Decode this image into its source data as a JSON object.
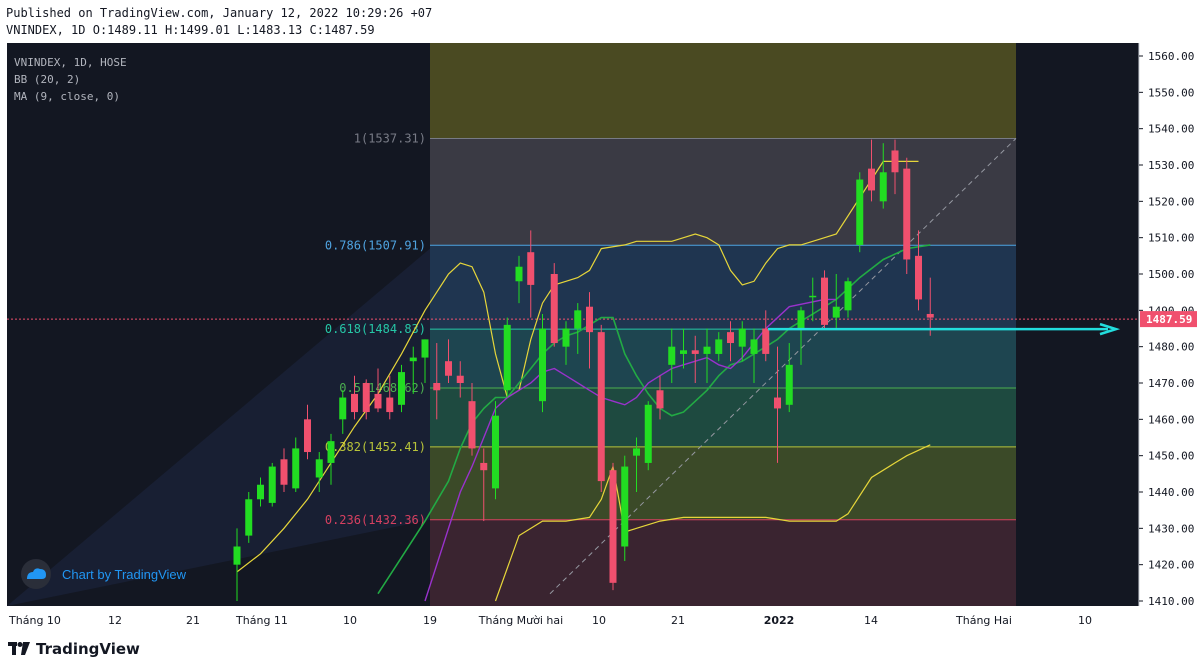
{
  "header": {
    "published": "Published on TradingView.com, January 12, 2022 10:29:26 +07",
    "symbol_line": "VNINDEX, 1D",
    "o": "O:1489.11",
    "h": "H:1499.01",
    "l": "L:1483.13",
    "c": "C:1487.59"
  },
  "legend": {
    "title": "VNINDEX, 1D, HOSE",
    "bb": "BB (20, 2)",
    "ma": "MA (9, close, 0)"
  },
  "watermark": "Chart by TradingView",
  "footer_brand": "TradingView",
  "price_tag": "1487.59",
  "colors": {
    "background": "#131722",
    "up": "#22dd22",
    "down": "#f0506e",
    "bb_band": "#e6d63a",
    "bb_basis": "#22aa44",
    "ma": "#9932cc",
    "arrow": "#22dddd",
    "price_tag": "#f0506e"
  },
  "chart_data": {
    "type": "candlestick",
    "y_axis": {
      "ylim": [
        1410,
        1560
      ],
      "ticks": [
        1410,
        1420,
        1430,
        1440,
        1450,
        1460,
        1470,
        1480,
        1490,
        1500,
        1510,
        1520,
        1530,
        1540,
        1550,
        1560
      ]
    },
    "x_axis": {
      "labels": [
        "Tháng 10",
        "12",
        "21",
        "Tháng 11",
        "10",
        "19",
        "Tháng Mười hai",
        "10",
        "21",
        "2022",
        "14",
        "Tháng Hai",
        "10"
      ],
      "bold": [
        "2022"
      ]
    },
    "candles": [
      {
        "o": 1420,
        "h": 1430,
        "l": 1410,
        "c": 1425
      },
      {
        "o": 1428,
        "h": 1440,
        "l": 1426,
        "c": 1438
      },
      {
        "o": 1438,
        "h": 1444,
        "l": 1436,
        "c": 1442
      },
      {
        "o": 1437,
        "h": 1448,
        "l": 1436,
        "c": 1447
      },
      {
        "o": 1449,
        "h": 1452,
        "l": 1440,
        "c": 1442
      },
      {
        "o": 1441,
        "h": 1455,
        "l": 1440,
        "c": 1452
      },
      {
        "o": 1460,
        "h": 1464,
        "l": 1449,
        "c": 1451
      },
      {
        "o": 1444,
        "h": 1451,
        "l": 1440,
        "c": 1449
      },
      {
        "o": 1448,
        "h": 1456,
        "l": 1442,
        "c": 1454
      },
      {
        "o": 1460,
        "h": 1468,
        "l": 1456,
        "c": 1466
      },
      {
        "o": 1467,
        "h": 1472,
        "l": 1460,
        "c": 1462
      },
      {
        "o": 1470,
        "h": 1471,
        "l": 1460,
        "c": 1462
      },
      {
        "o": 1467,
        "h": 1474,
        "l": 1462,
        "c": 1463
      },
      {
        "o": 1466,
        "h": 1472,
        "l": 1460,
        "c": 1462
      },
      {
        "o": 1464,
        "h": 1475,
        "l": 1462,
        "c": 1473
      },
      {
        "o": 1476,
        "h": 1480,
        "l": 1467,
        "c": 1477
      },
      {
        "o": 1477,
        "h": 1482,
        "l": 1470,
        "c": 1482
      },
      {
        "o": 1470,
        "h": 1481,
        "l": 1460,
        "c": 1468
      },
      {
        "o": 1476,
        "h": 1482,
        "l": 1470,
        "c": 1472
      },
      {
        "o": 1472,
        "h": 1476,
        "l": 1466,
        "c": 1470
      },
      {
        "o": 1465,
        "h": 1470,
        "l": 1450,
        "c": 1452
      },
      {
        "o": 1448,
        "h": 1452,
        "l": 1432,
        "c": 1446
      },
      {
        "o": 1441,
        "h": 1465,
        "l": 1438,
        "c": 1461
      },
      {
        "o": 1468,
        "h": 1488,
        "l": 1466,
        "c": 1486
      },
      {
        "o": 1498,
        "h": 1505,
        "l": 1492,
        "c": 1502
      },
      {
        "o": 1506,
        "h": 1512,
        "l": 1488,
        "c": 1497
      },
      {
        "o": 1465,
        "h": 1489,
        "l": 1462,
        "c": 1485
      },
      {
        "o": 1500,
        "h": 1503,
        "l": 1480,
        "c": 1481
      },
      {
        "o": 1480,
        "h": 1487,
        "l": 1475,
        "c": 1485
      },
      {
        "o": 1485,
        "h": 1492,
        "l": 1478,
        "c": 1490
      },
      {
        "o": 1491,
        "h": 1495,
        "l": 1474,
        "c": 1484
      },
      {
        "o": 1484,
        "h": 1486,
        "l": 1440,
        "c": 1443
      },
      {
        "o": 1446,
        "h": 1448,
        "l": 1413,
        "c": 1415
      },
      {
        "o": 1425,
        "h": 1450,
        "l": 1421,
        "c": 1447
      },
      {
        "o": 1450,
        "h": 1455,
        "l": 1440,
        "c": 1452
      },
      {
        "o": 1448,
        "h": 1465,
        "l": 1446,
        "c": 1464
      },
      {
        "o": 1468,
        "h": 1472,
        "l": 1460,
        "c": 1463
      },
      {
        "o": 1475,
        "h": 1485,
        "l": 1470,
        "c": 1480
      },
      {
        "o": 1478,
        "h": 1485,
        "l": 1474,
        "c": 1479
      },
      {
        "o": 1479,
        "h": 1483,
        "l": 1470,
        "c": 1478
      },
      {
        "o": 1478,
        "h": 1485,
        "l": 1470,
        "c": 1480
      },
      {
        "o": 1478,
        "h": 1484,
        "l": 1476,
        "c": 1482
      },
      {
        "o": 1484,
        "h": 1487,
        "l": 1476,
        "c": 1481
      },
      {
        "o": 1480,
        "h": 1487,
        "l": 1476,
        "c": 1485
      },
      {
        "o": 1478,
        "h": 1485,
        "l": 1470,
        "c": 1482
      },
      {
        "o": 1485,
        "h": 1490,
        "l": 1476,
        "c": 1478
      },
      {
        "o": 1466,
        "h": 1480,
        "l": 1448,
        "c": 1463
      },
      {
        "o": 1464,
        "h": 1481,
        "l": 1462,
        "c": 1475
      },
      {
        "o": 1485,
        "h": 1491,
        "l": 1475,
        "c": 1490
      },
      {
        "o": 1494,
        "h": 1499,
        "l": 1487,
        "c": 1494
      },
      {
        "o": 1499,
        "h": 1501,
        "l": 1485,
        "c": 1486
      },
      {
        "o": 1488,
        "h": 1500,
        "l": 1485,
        "c": 1491
      },
      {
        "o": 1490,
        "h": 1499,
        "l": 1488,
        "c": 1498
      },
      {
        "o": 1508,
        "h": 1528,
        "l": 1506,
        "c": 1526
      },
      {
        "o": 1529,
        "h": 1537,
        "l": 1520,
        "c": 1523
      },
      {
        "o": 1520,
        "h": 1536,
        "l": 1518,
        "c": 1528
      },
      {
        "o": 1534,
        "h": 1537,
        "l": 1522,
        "c": 1528
      },
      {
        "o": 1529,
        "h": 1532,
        "l": 1500,
        "c": 1504
      },
      {
        "o": 1505,
        "h": 1512,
        "l": 1490,
        "c": 1493
      },
      {
        "o": 1489,
        "h": 1499,
        "l": 1483,
        "c": 1488
      }
    ],
    "bollinger_upper": [
      1418,
      1423,
      1430,
      1438,
      1448,
      1458,
      1467,
      1478,
      1490,
      1500,
      1503,
      1502,
      1495,
      1478,
      1466,
      1468,
      1482,
      1492,
      1497,
      1498,
      1499,
      1501,
      1507,
      1508,
      1509,
      1509,
      1509,
      1509,
      1510,
      1511,
      1510,
      1508,
      1501,
      1497,
      1498,
      1503,
      1507,
      1508,
      1508,
      1509,
      1510,
      1511,
      1531,
      1531
    ],
    "bollinger_upper_x": [
      0,
      2,
      4,
      6,
      8,
      10,
      12,
      14,
      16,
      18,
      19,
      20,
      21,
      22,
      23,
      24,
      25,
      26,
      27,
      28,
      29,
      30,
      31,
      33,
      34,
      35,
      36,
      37,
      38,
      39,
      40,
      41,
      42,
      43,
      44,
      45,
      46,
      47,
      48,
      49,
      50,
      51,
      55,
      58
    ],
    "bollinger_lower": [
      1410,
      1428,
      1432,
      1432,
      1433,
      1438,
      1447,
      1429,
      1430,
      1432,
      1433,
      1433,
      1433,
      1433,
      1432,
      1432,
      1432,
      1434,
      1444,
      1448,
      1450,
      1453
    ],
    "bollinger_lower_x": [
      22,
      24,
      26,
      28,
      30,
      31,
      32,
      33,
      34,
      36,
      38,
      40,
      42,
      45,
      47,
      49,
      51,
      52,
      54,
      56,
      57,
      59
    ],
    "bollinger_basis": [
      1412,
      1422,
      1432,
      1443,
      1452,
      1459,
      1463,
      1466,
      1466,
      1470,
      1474,
      1478,
      1481,
      1483,
      1484,
      1486,
      1488,
      1488,
      1478,
      1472,
      1467,
      1463,
      1461,
      1462,
      1465,
      1468,
      1472,
      1475,
      1476,
      1478,
      1480,
      1482,
      1485,
      1487,
      1489,
      1493,
      1499,
      1504,
      1507,
      1508
    ],
    "bollinger_basis_x": [
      12,
      14,
      16,
      18,
      19,
      20,
      21,
      22,
      23,
      24,
      25,
      26,
      27,
      28,
      29,
      30,
      31,
      32,
      33,
      34,
      35,
      36,
      37,
      38,
      39,
      40,
      41,
      42,
      43,
      44,
      45,
      46,
      47,
      48,
      49,
      51,
      53,
      55,
      57,
      59
    ],
    "ma_9": [
      1410,
      1420,
      1430,
      1440,
      1447,
      1455,
      1463,
      1466,
      1468,
      1470,
      1473,
      1474,
      1472,
      1470,
      1468,
      1466,
      1465,
      1464,
      1466,
      1470,
      1472,
      1474,
      1475,
      1476,
      1477,
      1475,
      1474,
      1477,
      1481,
      1485,
      1491,
      1493,
      1493
    ],
    "ma_9_x": [
      16,
      17,
      18,
      19,
      20,
      21,
      22,
      23,
      24,
      25,
      26,
      27,
      28,
      29,
      30,
      31,
      32,
      33,
      34,
      35,
      36,
      37,
      38,
      39,
      40,
      41,
      42,
      43,
      44,
      45,
      47,
      50,
      51
    ],
    "fibonacci": [
      {
        "label": "1(1537.31)",
        "level": 1537.31
      },
      {
        "label": "0.786(1507.91)",
        "level": 1507.91
      },
      {
        "label": "0.618(1484.83)",
        "level": 1484.83
      },
      {
        "label": "0.5(1468.62)",
        "level": 1468.62
      },
      {
        "label": "0.382(1452.41)",
        "level": 1452.41
      },
      {
        "label": "0.236(1432.36)",
        "level": 1432.36
      }
    ],
    "last_price": 1487.59
  }
}
